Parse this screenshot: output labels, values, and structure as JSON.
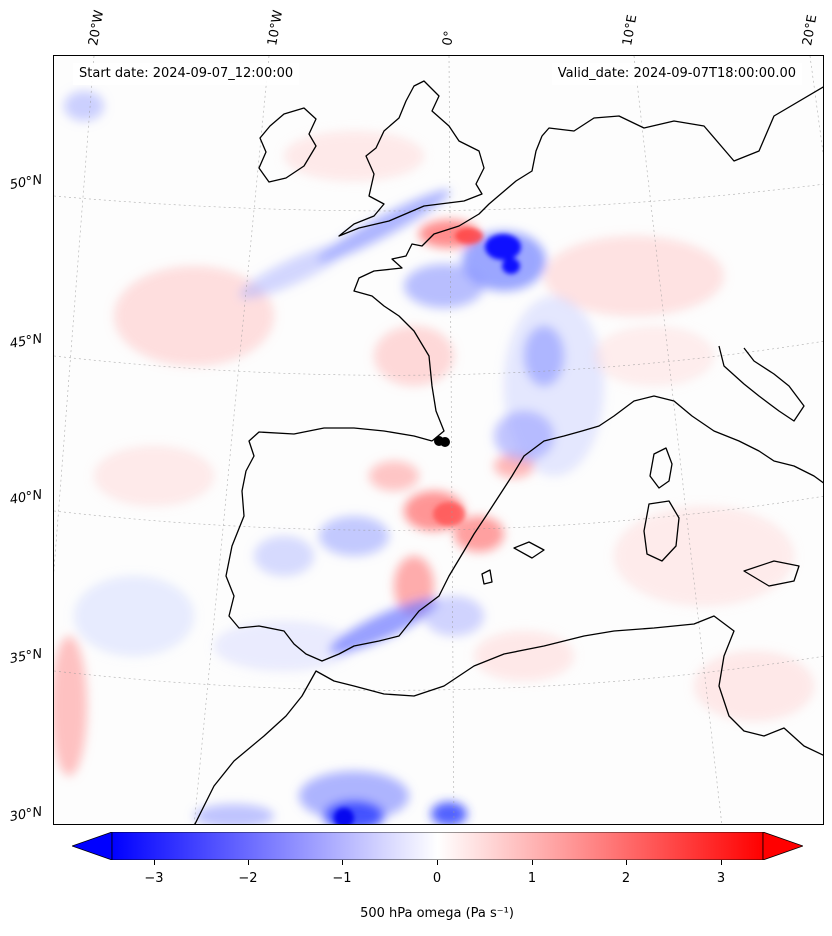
{
  "map": {
    "start_label": "Start date: 2024-09-07_12:00:00",
    "valid_label": "Valid_date: 2024-09-07T18:00:00.00",
    "lat_labels": [
      "50°N",
      "45°N",
      "40°N",
      "35°N",
      "30°N"
    ],
    "lon_labels": [
      "20°W",
      "10°W",
      "0°",
      "10°E",
      "20°E"
    ],
    "colors": {
      "negative": "#0000ff",
      "neutral": "#ffffff",
      "positive": "#ff0000",
      "coast": "#000000"
    }
  },
  "colorbar": {
    "label": "500 hPa omega (Pa s⁻¹)",
    "ticks": [
      "−3",
      "−2",
      "−1",
      "0",
      "1",
      "2",
      "3"
    ],
    "range": [
      -3.6,
      3.6
    ]
  }
}
